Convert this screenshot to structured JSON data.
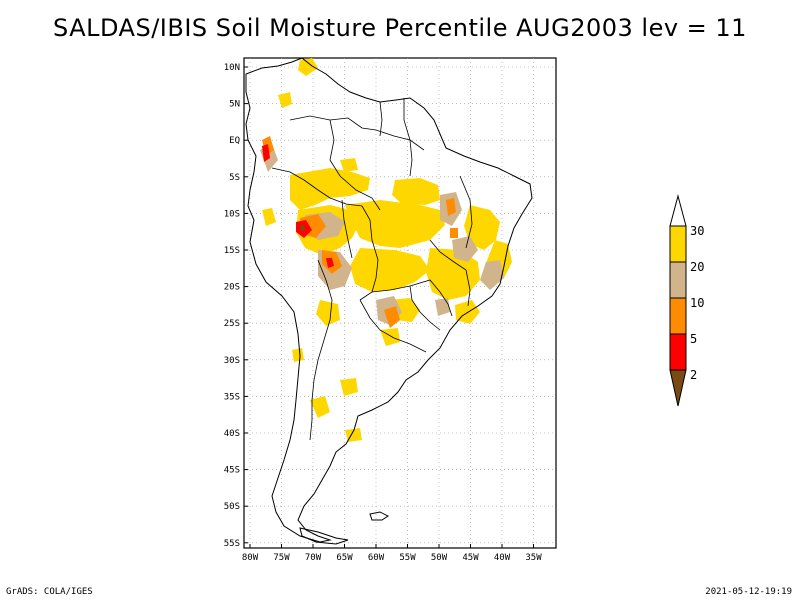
{
  "title": "SALDAS/IBIS Soil Moisture Percentile AUG2003 lev = 11",
  "map": {
    "lat_ticks": [
      "10N",
      "5N",
      "EQ",
      "5S",
      "10S",
      "15S",
      "20S",
      "25S",
      "30S",
      "35S",
      "40S",
      "45S",
      "50S",
      "55S"
    ],
    "lon_ticks": [
      "80W",
      "75W",
      "70W",
      "65W",
      "60W",
      "55W",
      "50W",
      "45W",
      "40W",
      "35W"
    ],
    "lat_range": [
      -56,
      12
    ],
    "lon_range": [
      -81,
      -34
    ]
  },
  "colorbar": {
    "levels": [
      "2",
      "5",
      "10",
      "20",
      "30"
    ],
    "colors": {
      "below_2": "#7a4a14",
      "2_5": "#ff0000",
      "5_10": "#ff8c00",
      "10_20": "#d2b48c",
      "20_30": "#ffd700",
      "above_30": "#ffffff"
    }
  },
  "footer": {
    "left": "GrADS: COLA/IGES",
    "right": "2021-05-12-19:19"
  }
}
